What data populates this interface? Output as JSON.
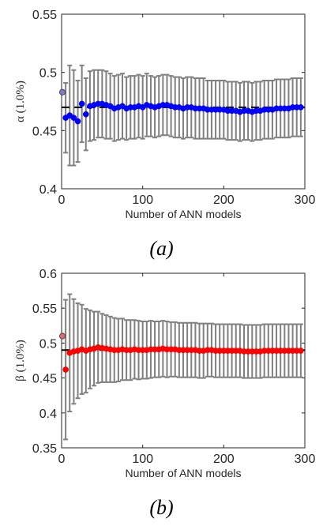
{
  "panels": [
    {
      "caption": "(a)",
      "xlabel": "Number of ANN models",
      "ylabel": "α (1.0%)",
      "xlim": [
        0,
        300
      ],
      "ylim": [
        0.4,
        0.55
      ],
      "xticks": [
        0,
        100,
        200,
        300
      ],
      "xtick_labels": [
        "0",
        "100",
        "200",
        "300"
      ],
      "yticks": [
        0.4,
        0.45,
        0.5,
        0.55
      ],
      "ytick_labels": [
        "0.4",
        "0.45",
        "0.5",
        "0.55"
      ],
      "reference_line": 0.47,
      "marker_color": "#0000ff",
      "first_marker_color": "#7b7bd6",
      "errorbar_color": "#808080",
      "reference_color": "#000000"
    },
    {
      "caption": "(b)",
      "xlabel": "Number of ANN models",
      "ylabel": "β (1.0%)",
      "xlim": [
        0,
        300
      ],
      "ylim": [
        0.35,
        0.6
      ],
      "xticks": [
        0,
        100,
        200,
        300
      ],
      "xtick_labels": [
        "0",
        "100",
        "200",
        "300"
      ],
      "yticks": [
        0.35,
        0.4,
        0.45,
        0.5,
        0.55,
        0.6
      ],
      "ytick_labels": [
        "0.35",
        "0.4",
        "0.45",
        "0.5",
        "0.55",
        "0.6"
      ],
      "reference_line": 0.49,
      "marker_color": "#ff0000",
      "first_marker_color": "#e06a6a",
      "errorbar_color": "#808080",
      "reference_color": "#000000"
    }
  ],
  "chart_data": [
    {
      "type": "scatter",
      "xlabel": "Number of ANN models",
      "ylabel": "α (1.0%)",
      "xlim": [
        0,
        300
      ],
      "ylim": [
        0.4,
        0.55
      ],
      "reference_line_y": 0.47,
      "x": [
        1,
        5,
        10,
        15,
        20,
        25,
        30,
        35,
        40,
        45,
        50,
        55,
        60,
        65,
        70,
        75,
        80,
        85,
        90,
        95,
        100,
        105,
        110,
        115,
        120,
        125,
        130,
        135,
        140,
        145,
        150,
        155,
        160,
        165,
        170,
        175,
        180,
        185,
        190,
        195,
        200,
        205,
        210,
        215,
        220,
        225,
        230,
        235,
        240,
        245,
        250,
        255,
        260,
        265,
        270,
        275,
        280,
        285,
        290,
        295
      ],
      "y": [
        0.483,
        0.461,
        0.463,
        0.461,
        0.458,
        0.473,
        0.464,
        0.471,
        0.472,
        0.473,
        0.473,
        0.472,
        0.471,
        0.469,
        0.47,
        0.471,
        0.469,
        0.47,
        0.47,
        0.471,
        0.47,
        0.472,
        0.471,
        0.47,
        0.471,
        0.472,
        0.472,
        0.471,
        0.47,
        0.47,
        0.469,
        0.47,
        0.47,
        0.469,
        0.469,
        0.469,
        0.468,
        0.468,
        0.468,
        0.468,
        0.468,
        0.467,
        0.467,
        0.467,
        0.466,
        0.467,
        0.467,
        0.466,
        0.467,
        0.467,
        0.468,
        0.468,
        0.468,
        0.469,
        0.469,
        0.469,
        0.469,
        0.47,
        0.47,
        0.47
      ],
      "err": [
        0.0,
        0.03,
        0.043,
        0.041,
        0.035,
        0.033,
        0.031,
        0.03,
        0.03,
        0.029,
        0.029,
        0.029,
        0.028,
        0.028,
        0.028,
        0.028,
        0.027,
        0.027,
        0.027,
        0.027,
        0.027,
        0.027,
        0.026,
        0.026,
        0.026,
        0.026,
        0.026,
        0.026,
        0.026,
        0.026,
        0.026,
        0.026,
        0.026,
        0.026,
        0.026,
        0.026,
        0.025,
        0.025,
        0.025,
        0.025,
        0.025,
        0.025,
        0.025,
        0.025,
        0.025,
        0.025,
        0.025,
        0.025,
        0.025,
        0.025,
        0.025,
        0.025,
        0.025,
        0.025,
        0.025,
        0.025,
        0.025,
        0.025,
        0.025,
        0.025
      ]
    },
    {
      "type": "scatter",
      "xlabel": "Number of ANN models",
      "ylabel": "β (1.0%)",
      "xlim": [
        0,
        300
      ],
      "ylim": [
        0.35,
        0.6
      ],
      "reference_line_y": 0.49,
      "x": [
        1,
        5,
        10,
        15,
        20,
        25,
        30,
        35,
        40,
        45,
        50,
        55,
        60,
        65,
        70,
        75,
        80,
        85,
        90,
        95,
        100,
        105,
        110,
        115,
        120,
        125,
        130,
        135,
        140,
        145,
        150,
        155,
        160,
        165,
        170,
        175,
        180,
        185,
        190,
        195,
        200,
        205,
        210,
        215,
        220,
        225,
        230,
        235,
        240,
        245,
        250,
        255,
        260,
        265,
        270,
        275,
        280,
        285,
        290,
        295
      ],
      "y": [
        0.51,
        0.462,
        0.486,
        0.488,
        0.489,
        0.491,
        0.489,
        0.491,
        0.492,
        0.494,
        0.493,
        0.492,
        0.491,
        0.49,
        0.49,
        0.491,
        0.49,
        0.49,
        0.491,
        0.49,
        0.49,
        0.49,
        0.491,
        0.491,
        0.491,
        0.492,
        0.491,
        0.491,
        0.491,
        0.49,
        0.49,
        0.49,
        0.49,
        0.49,
        0.489,
        0.489,
        0.49,
        0.49,
        0.489,
        0.489,
        0.489,
        0.489,
        0.489,
        0.489,
        0.489,
        0.488,
        0.488,
        0.488,
        0.488,
        0.488,
        0.489,
        0.489,
        0.489,
        0.489,
        0.489,
        0.489,
        0.489,
        0.489,
        0.489,
        0.489
      ],
      "err": [
        0.0,
        0.1,
        0.084,
        0.075,
        0.068,
        0.064,
        0.06,
        0.056,
        0.053,
        0.051,
        0.049,
        0.048,
        0.047,
        0.046,
        0.045,
        0.044,
        0.043,
        0.043,
        0.042,
        0.042,
        0.041,
        0.041,
        0.041,
        0.04,
        0.04,
        0.04,
        0.04,
        0.039,
        0.039,
        0.039,
        0.039,
        0.039,
        0.039,
        0.039,
        0.039,
        0.039,
        0.038,
        0.038,
        0.038,
        0.038,
        0.038,
        0.038,
        0.038,
        0.038,
        0.038,
        0.038,
        0.038,
        0.038,
        0.038,
        0.038,
        0.038,
        0.038,
        0.038,
        0.038,
        0.038,
        0.038,
        0.038,
        0.038,
        0.038,
        0.038
      ]
    }
  ]
}
